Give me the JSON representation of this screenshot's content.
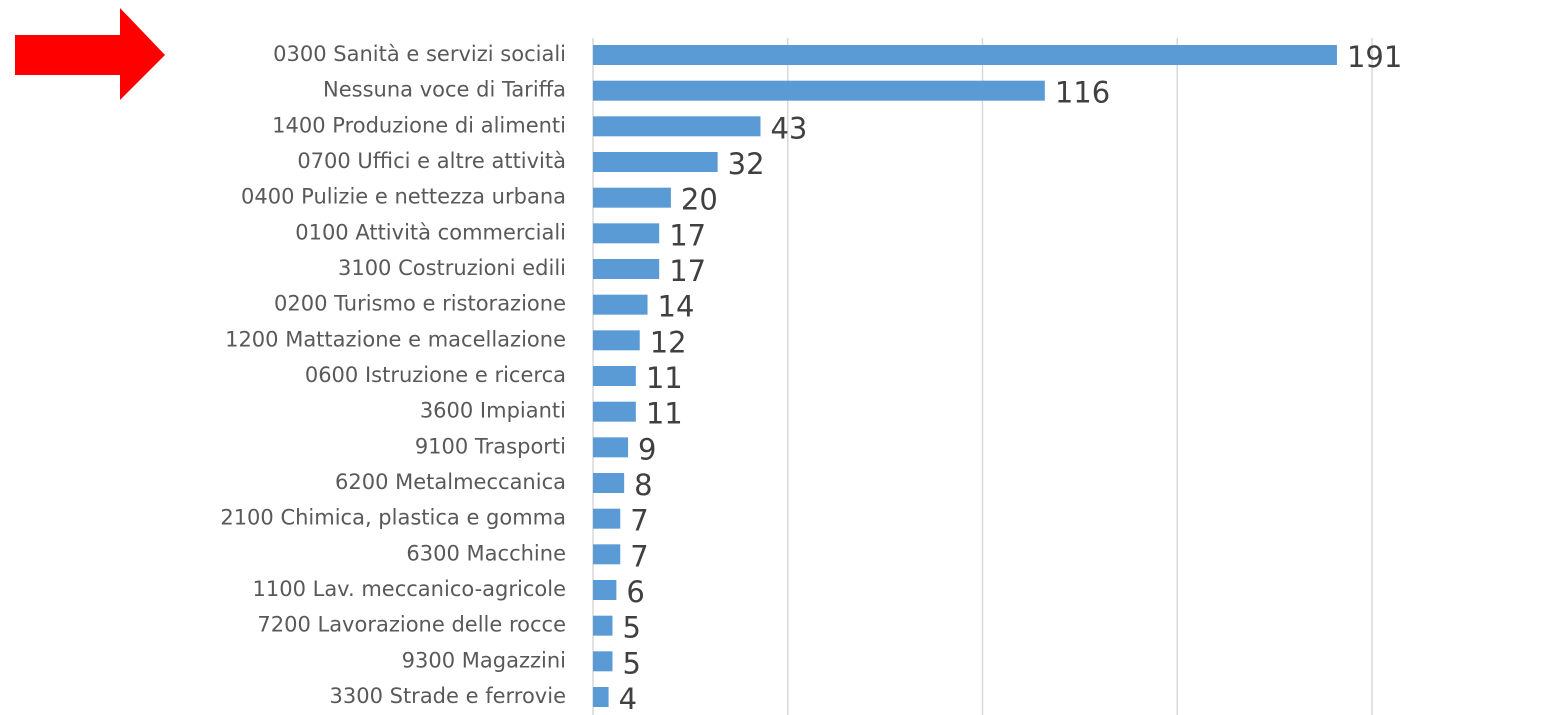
{
  "chart_data": {
    "type": "hbar",
    "categories": [
      "0300 Sanità e servizi sociali",
      "Nessuna voce di Tariffa",
      "1400 Produzione di alimenti",
      "0700 Uffici e altre attività",
      "0400 Pulizie e nettezza urbana",
      "0100 Attività commerciali",
      "3100 Costruzioni edili",
      "0200 Turismo e ristorazione",
      "1200 Mattazione e macellazione",
      "0600 Istruzione e ricerca",
      "3600 Impianti",
      "9100 Trasporti",
      "6200 Metalmeccanica",
      "2100 Chimica, plastica e gomma",
      "6300 Macchine",
      "1100 Lav. meccanico-agricole",
      "7200 Lavorazione delle rocce",
      "9300 Magazzini",
      "3300 Strade e ferrovie"
    ],
    "values": [
      191,
      116,
      43,
      32,
      20,
      17,
      17,
      14,
      12,
      11,
      11,
      9,
      8,
      7,
      7,
      6,
      5,
      5,
      4
    ],
    "color": "#5b9bd5",
    "xlim": [
      0,
      200
    ],
    "xticks": [
      0,
      50,
      100,
      150,
      200
    ],
    "grid": true
  }
}
